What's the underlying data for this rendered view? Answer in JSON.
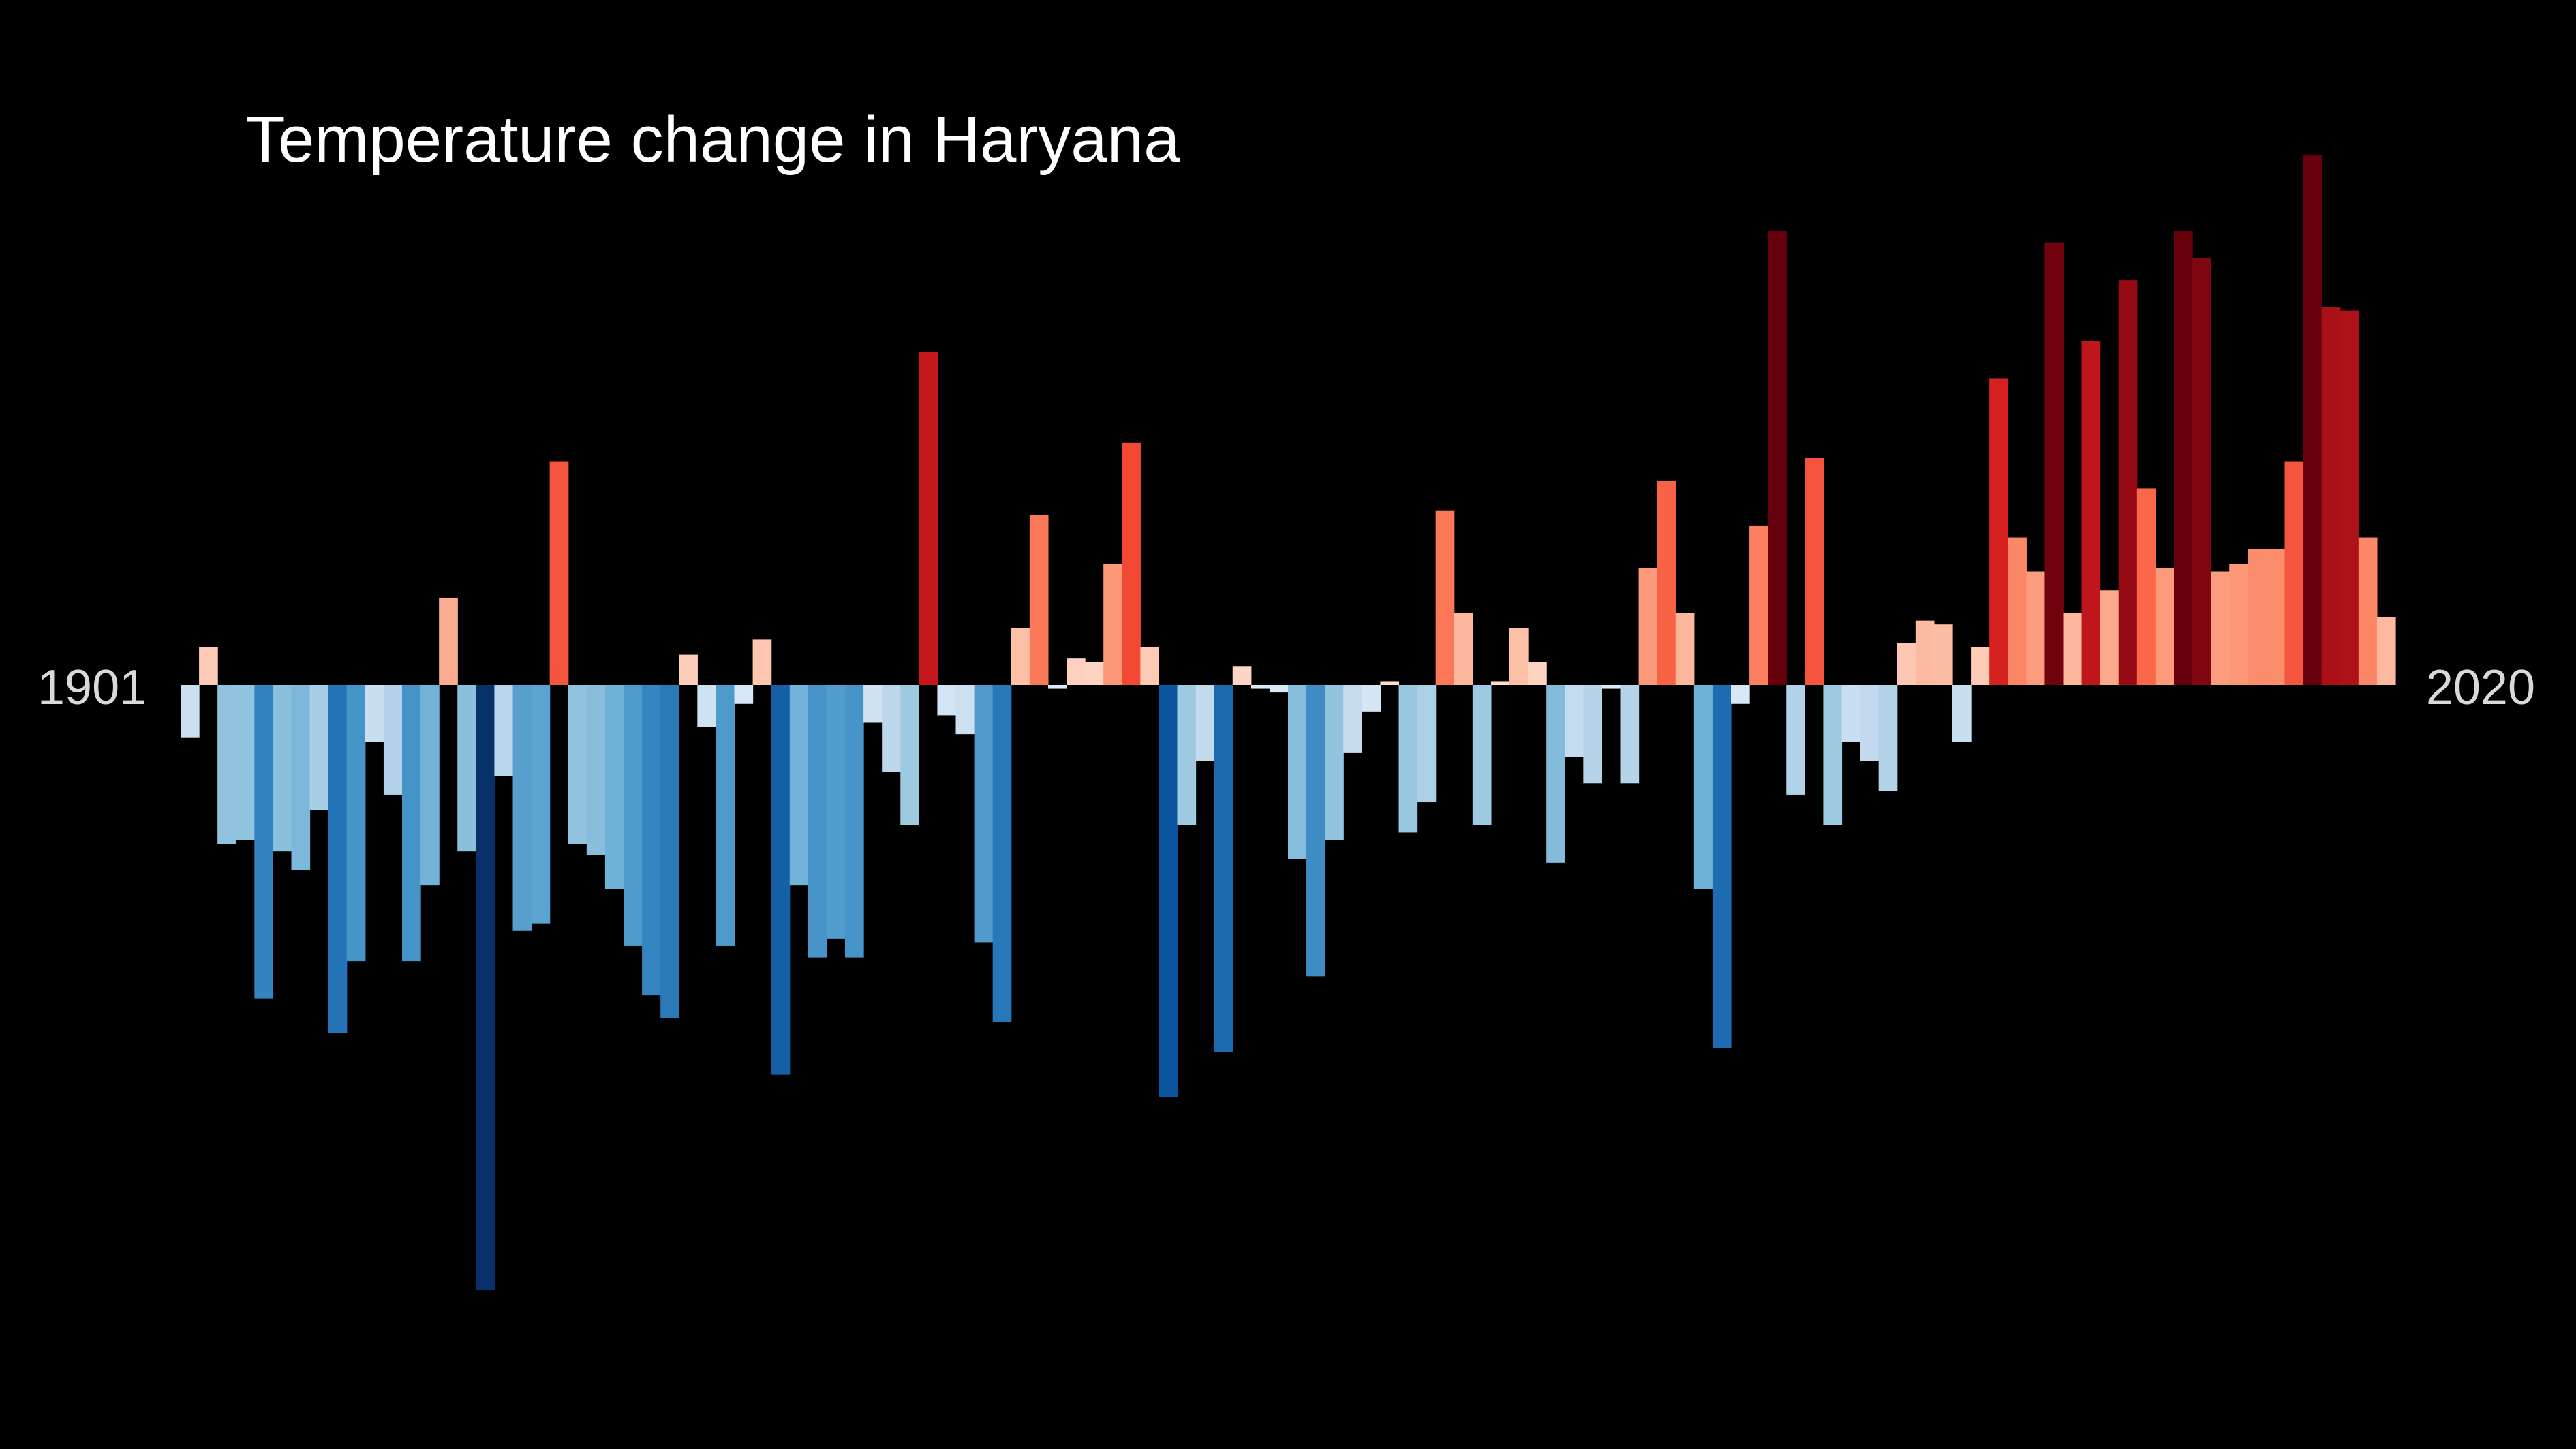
{
  "chart_data": {
    "type": "bar",
    "title": "Temperature change in Haryana",
    "start_label": "1901",
    "end_label": "2020",
    "x_start": 1901,
    "x_end": 2020,
    "ylim": [
      -1.6,
      1.4
    ],
    "grid": false,
    "values": [
      -0.14,
      0.1,
      -0.42,
      -0.41,
      -0.83,
      -0.44,
      -0.49,
      -0.33,
      -0.92,
      -0.73,
      -0.15,
      -0.29,
      -0.73,
      -0.53,
      0.23,
      -0.44,
      -1.6,
      -0.24,
      -0.65,
      -0.63,
      0.59,
      -0.42,
      -0.45,
      -0.54,
      -0.69,
      -0.82,
      -0.88,
      0.08,
      -0.11,
      -0.69,
      -0.05,
      0.12,
      -1.03,
      -0.53,
      -0.72,
      -0.67,
      -0.72,
      -0.1,
      -0.23,
      -0.37,
      0.88,
      -0.08,
      -0.13,
      -0.68,
      -0.89,
      0.15,
      0.45,
      -0.01,
      0.07,
      0.06,
      0.32,
      0.64,
      0.1,
      -1.09,
      -0.37,
      -0.2,
      -0.97,
      0.05,
      -0.01,
      -0.02,
      -0.46,
      -0.77,
      -0.41,
      -0.18,
      -0.07,
      0.01,
      -0.39,
      -0.31,
      0.46,
      0.19,
      -0.37,
      0.01,
      0.15,
      0.06,
      -0.47,
      -0.19,
      -0.26,
      -0.01,
      -0.26,
      0.31,
      0.54,
      0.19,
      -0.54,
      -0.96,
      -0.05,
      0.42,
      1.2,
      -0.29,
      0.6,
      -0.37,
      -0.15,
      -0.2,
      -0.28,
      0.11,
      0.17,
      0.16,
      -0.15,
      0.1,
      0.81,
      0.39,
      0.3,
      1.17,
      0.19,
      0.91,
      0.25,
      1.07,
      0.52,
      0.31,
      1.2,
      1.13,
      0.3,
      0.32,
      0.36,
      0.36,
      0.59,
      1.4,
      1.0,
      0.99,
      0.39,
      0.18
    ]
  }
}
